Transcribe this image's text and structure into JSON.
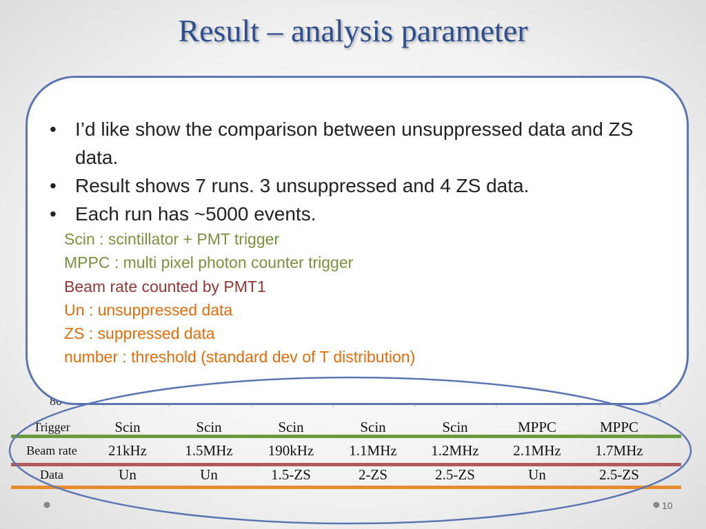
{
  "title": "Result – analysis parameter",
  "bullets": [
    "I’d like show the comparison between unsuppressed data and ZS data.",
    "Result shows 7 runs. 3 unsuppressed and 4 ZS data.",
    "Each run has ~5000 events."
  ],
  "notes": [
    {
      "text": "Scin : scintillator + PMT trigger",
      "color": "#77933c"
    },
    {
      "text": "MPPC : multi pixel photon counter trigger",
      "color": "#77933c"
    },
    {
      "text": "Beam rate counted by PMT1",
      "color": "#953735"
    },
    {
      "text": "Un : unsuppressed data",
      "color": "#e46c0a"
    },
    {
      "text": "ZS  : suppressed data",
      "color": "#e46c0a"
    },
    {
      "text": "number : threshold (standard dev of T distribution)",
      "color": "#e46c0a"
    }
  ],
  "hidden_label": "80",
  "table": {
    "rows": [
      {
        "label": "Trigger",
        "line_color": "#6a9a3a",
        "cells": [
          "Scin",
          "Scin",
          "Scin",
          "Scin",
          "Scin",
          "MPPC",
          "MPPC"
        ]
      },
      {
        "label": "Beam rate",
        "line_color": "#b05a5a",
        "cells": [
          "21kHz",
          "1.5MHz",
          "190kHz",
          "1.1MHz",
          "1.2MHz",
          "2.1MHz",
          "1.7MHz"
        ]
      },
      {
        "label": "Data",
        "line_color": "#e88a2e",
        "cells": [
          "Un",
          "Un",
          "1.5-ZS",
          "2-ZS",
          "2.5-ZS",
          "Un",
          "2.5-ZS"
        ]
      }
    ]
  },
  "page_number": "10"
}
